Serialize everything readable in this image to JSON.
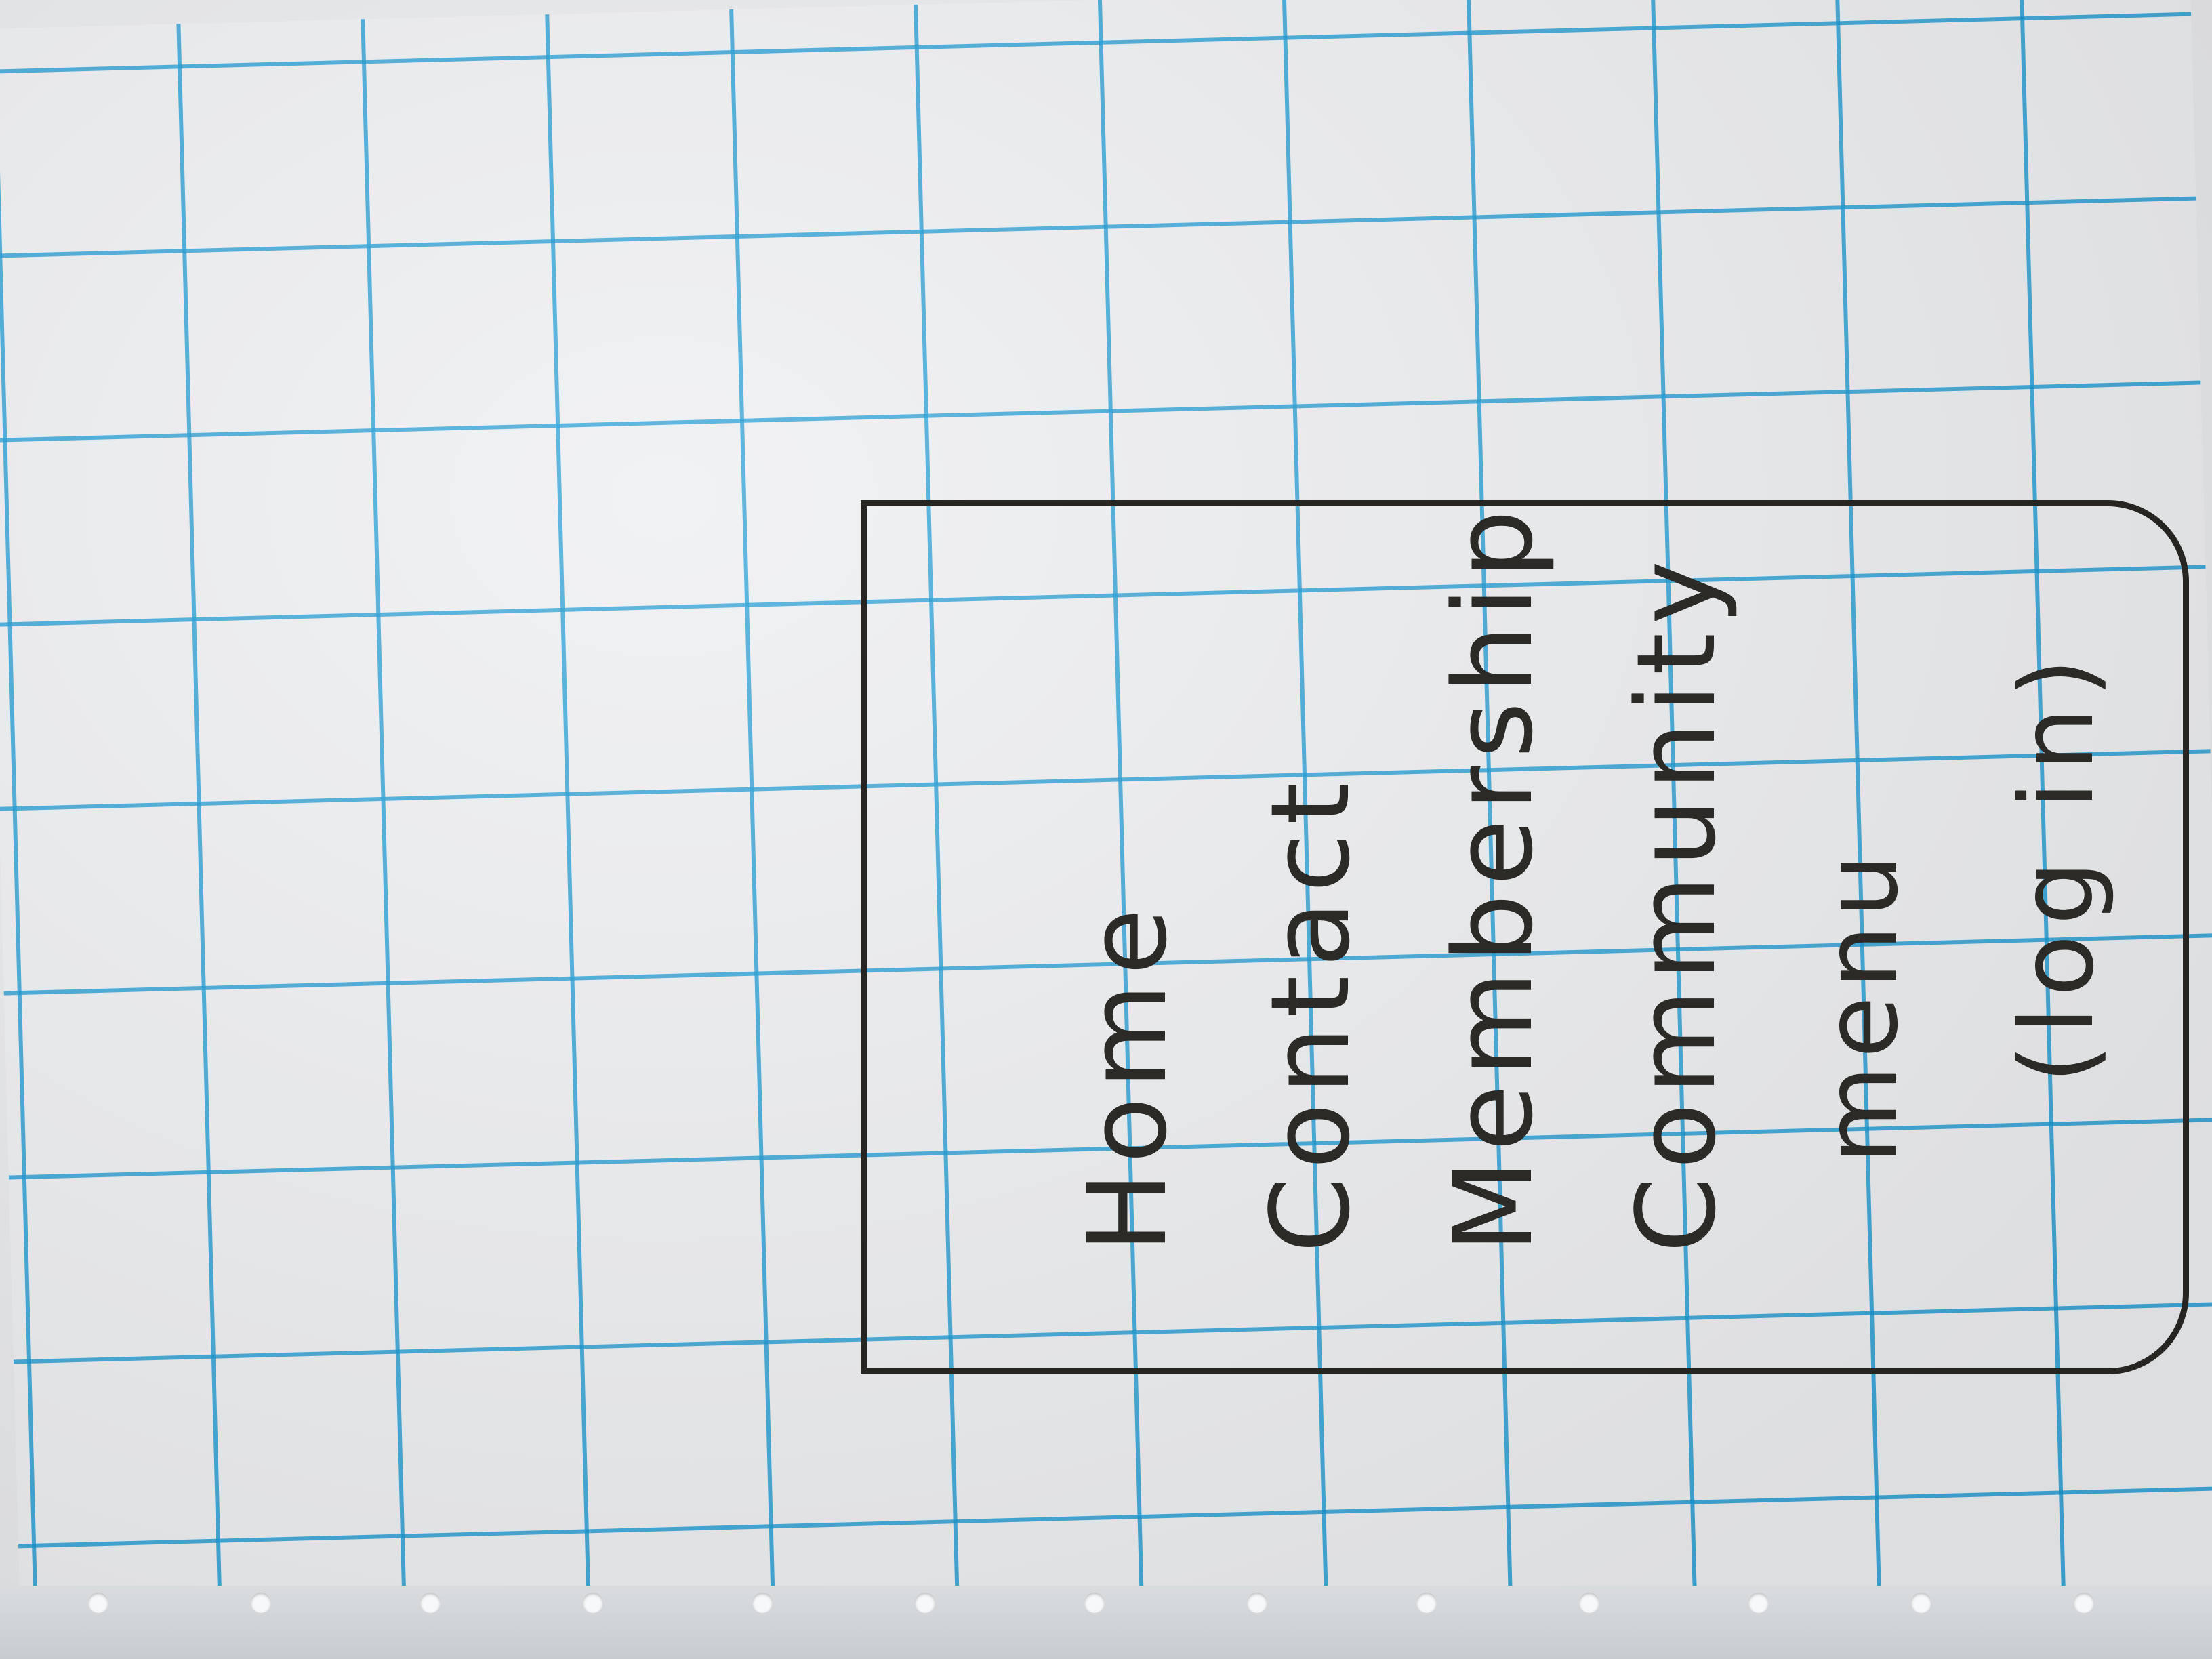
{
  "sketch": {
    "heading": "menu",
    "nav_items": [
      {
        "label": "Home"
      },
      {
        "label": "Contact"
      },
      {
        "label": "Membership"
      },
      {
        "label": "Community"
      }
    ],
    "login_label": "(log in)"
  },
  "colors": {
    "grid_line": "#1496d2",
    "paper": "#eeeff1",
    "ink": "#2b2a26"
  }
}
